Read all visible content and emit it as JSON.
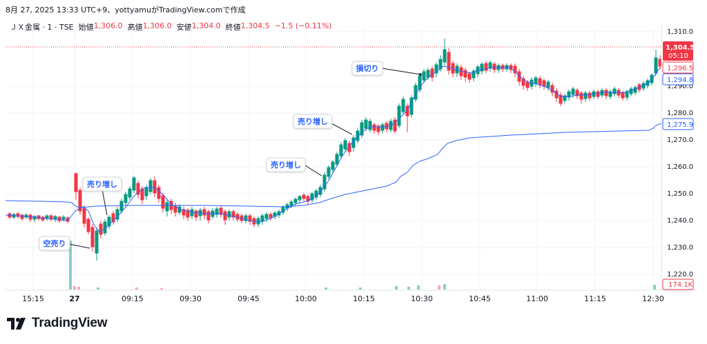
{
  "header": {
    "line": "8月 27, 2025 13:33 UTC+9、yottyamuがTradingView.comで作成"
  },
  "legend": {
    "symbol": "ＪＸ金属 · 1 · TSE",
    "open_label": "始値",
    "open": "1,306.0",
    "high_label": "高値",
    "high": "1,306.0",
    "low_label": "安値",
    "low": "1,304.0",
    "close_label": "終値",
    "close": "1,304.5",
    "change": "−1.5 (−0.11%)"
  },
  "price_axis": {
    "ticks": [
      "1,310.0",
      "1,290.0",
      "1,280.0",
      "1,270.0",
      "1,260.0",
      "1,250.0",
      "1,240.0",
      "1,230.0",
      "1,220.0"
    ],
    "last_price": "1,304.5",
    "countdown": "05:10",
    "labels": [
      {
        "text": "1,296.5",
        "color": "#f23645"
      },
      {
        "text": "1,294.8",
        "color": "#2962ff"
      },
      {
        "text": "1,275.9",
        "color": "#2962ff"
      },
      {
        "text": "174.1K",
        "color": "#f23645"
      }
    ]
  },
  "time_axis": {
    "ticks": [
      "15:15",
      "27",
      "09:15",
      "09:30",
      "09:45",
      "10:00",
      "10:15",
      "10:30",
      "10:45",
      "11:00",
      "11:15",
      "12:30"
    ]
  },
  "annotations": [
    {
      "text": "損切り"
    },
    {
      "text": "売り増し"
    },
    {
      "text": "売り増し"
    },
    {
      "text": "売り増し"
    },
    {
      "text": "空売り"
    }
  ],
  "colors": {
    "up": "#089981",
    "down": "#f23645",
    "ma_fast": "#2962ff",
    "vwap": "#2962ff",
    "volume": "#26a69a"
  },
  "brand": {
    "name": "TradingView"
  }
}
